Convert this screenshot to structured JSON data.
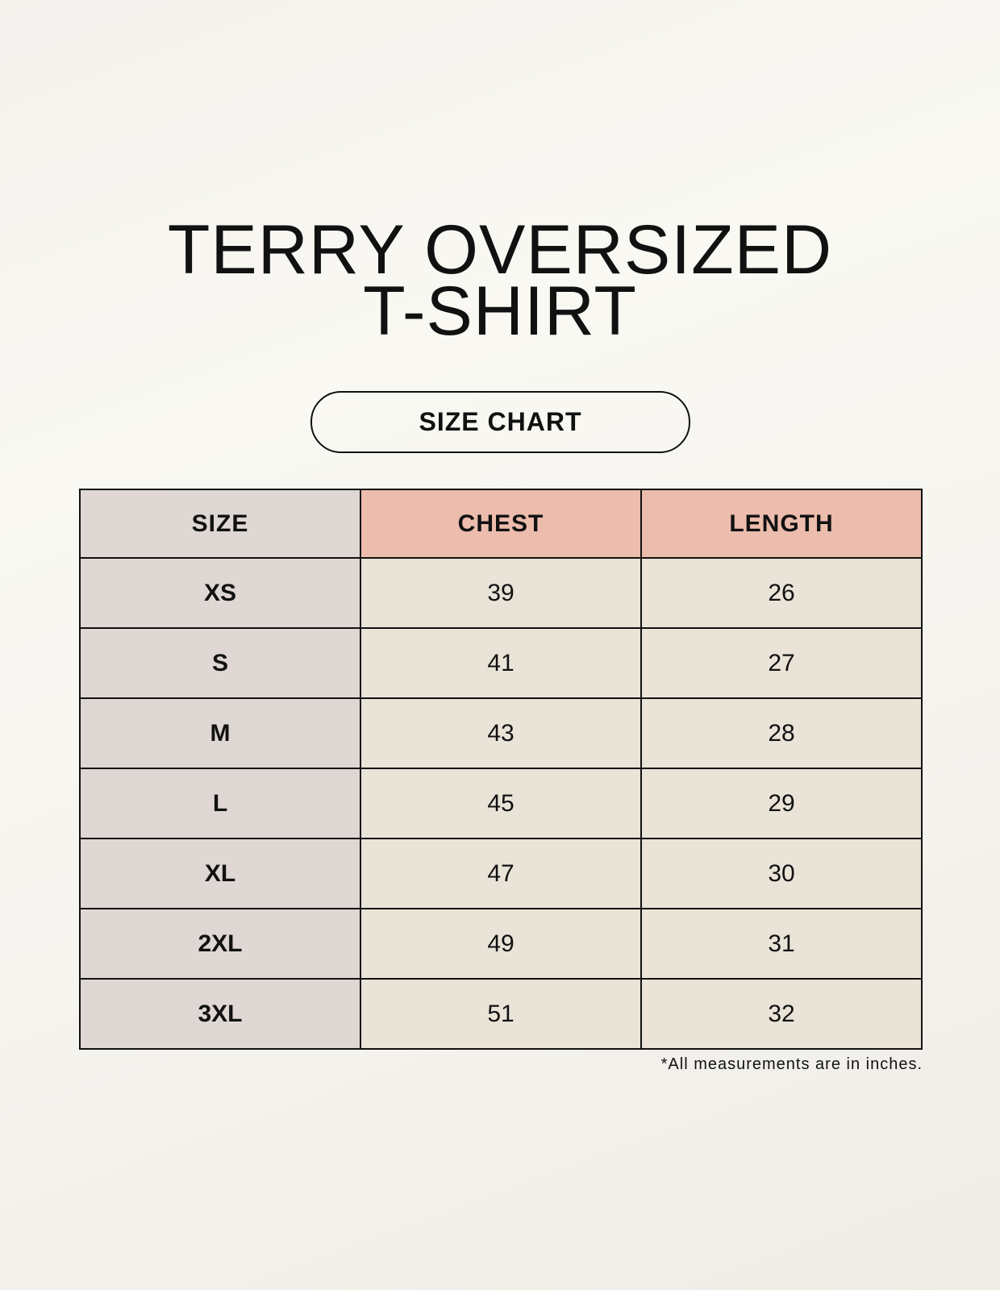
{
  "title": {
    "line1": "TERRY OVERSIZED",
    "line2": "T-SHIRT"
  },
  "badge": "SIZE CHART",
  "table": {
    "headers": [
      "SIZE",
      "CHEST",
      "LENGTH"
    ],
    "rows": [
      [
        "XS",
        "39",
        "26"
      ],
      [
        "S",
        "41",
        "27"
      ],
      [
        "M",
        "43",
        "28"
      ],
      [
        "L",
        "45",
        "29"
      ],
      [
        "XL",
        "47",
        "30"
      ],
      [
        "2XL",
        "49",
        "31"
      ],
      [
        "3XL",
        "51",
        "32"
      ]
    ]
  },
  "note": "*All measurements are in inches.",
  "colors": {
    "size_column": "#dfd7d3",
    "header_accent": "#ecbcad",
    "cells": "#e9e3d8",
    "background": "#f7f5f0"
  }
}
